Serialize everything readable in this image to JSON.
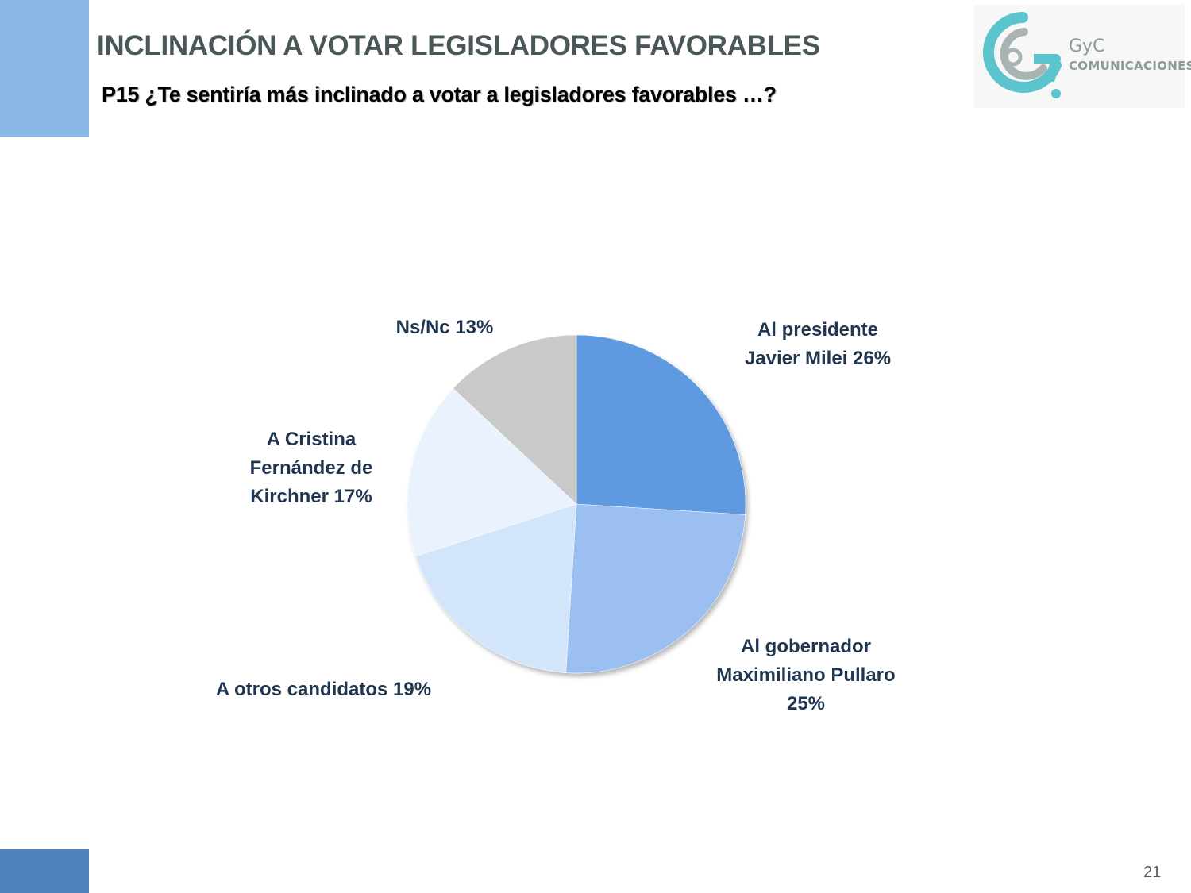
{
  "header": {
    "title": "INCLINACIÓN A VOTAR LEGISLADORES FAVORABLES",
    "question": "P15 ¿Te sentiría más inclinado a votar a legisladores favorables …?"
  },
  "logo": {
    "name": "GyC",
    "tagline": "COMUNICACIONES",
    "colors": {
      "primary": "#5bc4cc",
      "secondary": "#a9b3b4"
    }
  },
  "colors": {
    "accent_light": "#8ab8e6",
    "accent_dark": "#4f81bd"
  },
  "chart_data": {
    "type": "pie",
    "title": "",
    "slices": [
      {
        "label": "Al presidente Javier Milei",
        "value": 26,
        "display": "Al presidente\nJavier Milei 26%",
        "color": "#5f99e0"
      },
      {
        "label": "Al gobernador Maximiliano Pullaro",
        "value": 25,
        "display": "Al gobernador\nMaximiliano Pullaro\n25%",
        "color": "#9bbff0"
      },
      {
        "label": "A otros candidatos",
        "value": 19,
        "display": "A otros candidatos 19%",
        "color": "#d3e5fb"
      },
      {
        "label": "A Cristina Fernández de Kirchner",
        "value": 17,
        "display": "A Cristina\nFernández de\nKirchner 17%",
        "color": "#e9f2fd"
      },
      {
        "label": "Ns/Nc",
        "value": 13,
        "display": "Ns/Nc 13%",
        "color": "#c9c9c9"
      }
    ]
  },
  "footer": {
    "page_number": "21"
  }
}
